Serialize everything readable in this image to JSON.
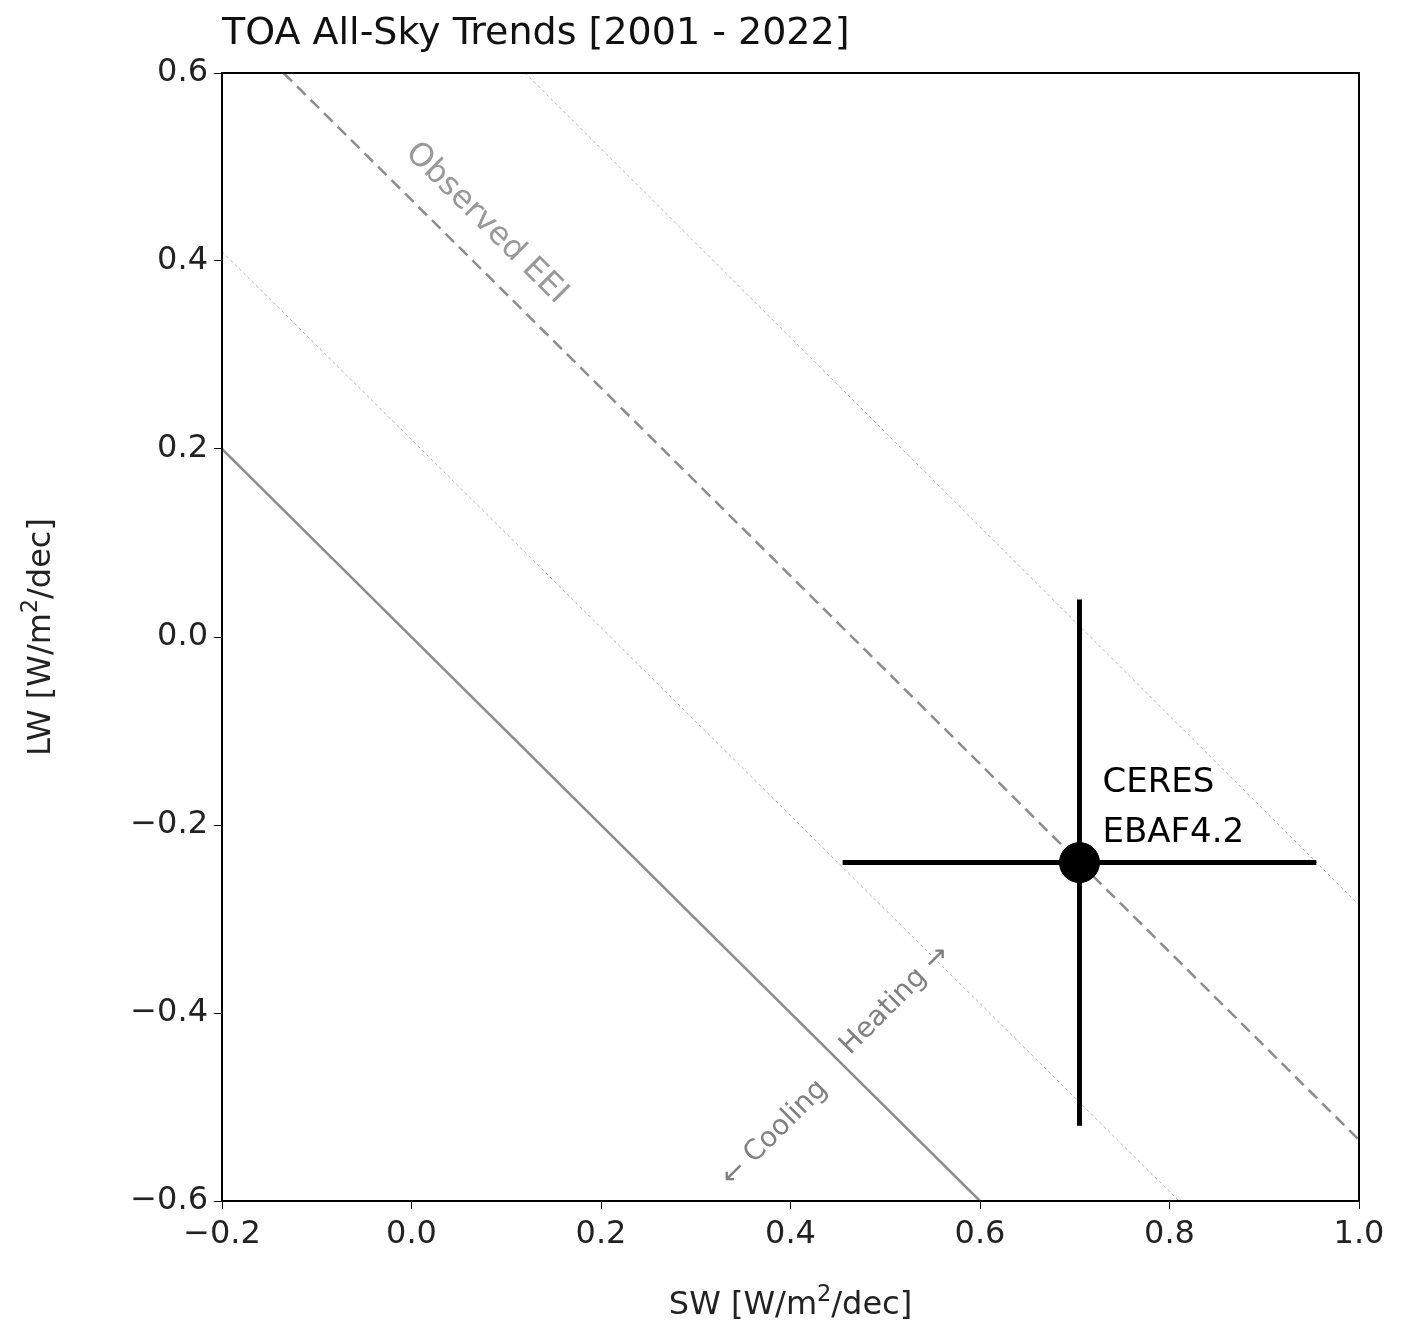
{
  "chart_data": {
    "type": "scatter",
    "title": "TOA All-Sky Trends [2001 - 2022]",
    "xlabel": "SW [W/m$^{2}$/dec]",
    "ylabel": "LW [W/m$^{2}$/dec]",
    "xlim": [
      -0.2,
      1.0
    ],
    "ylim": [
      -0.6,
      0.6
    ],
    "xticks": [
      {
        "value": -0.2,
        "label": "−0.2"
      },
      {
        "value": 0,
        "label": "0.0"
      },
      {
        "value": 0.2,
        "label": "0.2"
      },
      {
        "value": 0.4,
        "label": "0.4"
      },
      {
        "value": 0.6,
        "label": "0.6"
      },
      {
        "value": 0.8,
        "label": "0.8"
      },
      {
        "value": 1.0,
        "label": "1.0"
      }
    ],
    "yticks": [
      {
        "value": -0.6,
        "label": "−0.6"
      },
      {
        "value": -0.4,
        "label": "−0.4"
      },
      {
        "value": -0.2,
        "label": "−0.2"
      },
      {
        "value": 0,
        "label": "0.0"
      },
      {
        "value": 0.2,
        "label": "0.2"
      },
      {
        "value": 0.4,
        "label": "0.4"
      },
      {
        "value": 0.6,
        "label": "0.6"
      }
    ],
    "series": [
      {
        "type": "line",
        "color": "#8c8c8c",
        "line_style": "solid",
        "x": [
          -0.2,
          0.6
        ],
        "values": [
          0.2,
          -0.6
        ]
      },
      {
        "type": "line",
        "color": "#b0b0b0",
        "line_style": "dotted",
        "x": [
          -0.2,
          0.81
        ],
        "values": [
          0.41,
          -0.6
        ]
      },
      {
        "type": "line",
        "name": "Observed EEI",
        "color": "#8c8c8c",
        "line_style": "dashed",
        "x": [
          -0.135,
          1.0
        ],
        "values": [
          0.6,
          -0.535
        ]
      },
      {
        "type": "line",
        "color": "#b0b0b0",
        "line_style": "dotted",
        "x": [
          0.12,
          1.0
        ],
        "values": [
          0.6,
          -0.285
        ]
      },
      {
        "type": "scatter",
        "name": "CERES EBAF4.2",
        "color": "#000000",
        "marker": "circle",
        "x": [
          0.705
        ],
        "values": [
          -0.24
        ],
        "errors": [
          0.28
        ],
        "xerrors": [
          0.25
        ]
      }
    ],
    "annotations": [
      "← Cooling",
      "Heating →"
    ]
  }
}
